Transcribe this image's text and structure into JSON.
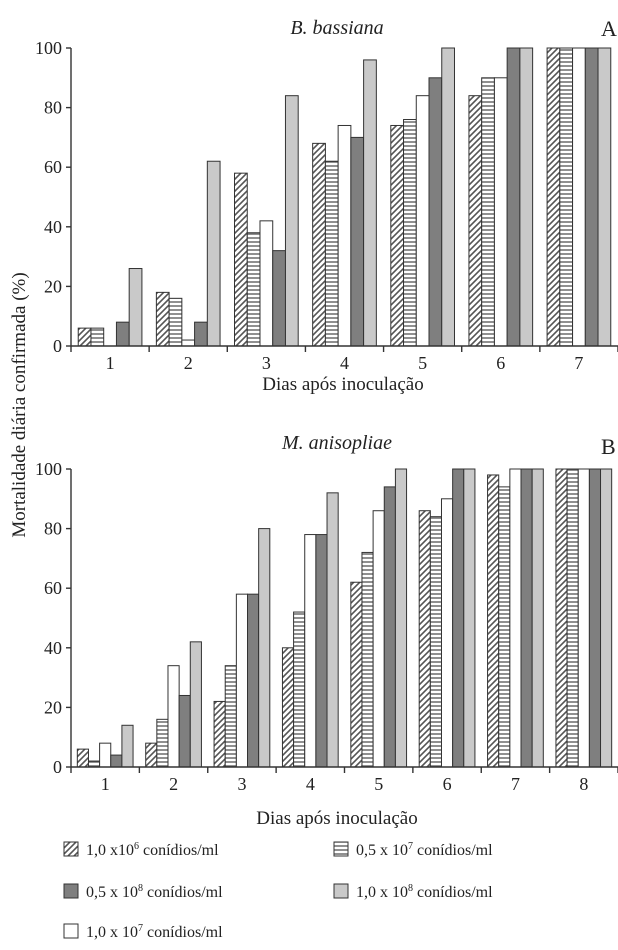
{
  "ylabel": "Mortalidade diária confirmada (%)",
  "legend": [
    {
      "key": "s1",
      "pattern": "diag",
      "parts": [
        "1,0 x10",
        "6",
        " conídios/ml"
      ]
    },
    {
      "key": "s2",
      "pattern": "horiz",
      "parts": [
        "0,5 x 10",
        "7",
        " conídios/ml"
      ]
    },
    {
      "key": "s3",
      "pattern": "dark",
      "parts": [
        "0,5 x 10",
        "8",
        " conídios/ml"
      ]
    },
    {
      "key": "s4",
      "pattern": "light",
      "parts": [
        "1,0 x 10",
        "8",
        " conídios/ml"
      ]
    },
    {
      "key": "s5",
      "pattern": "white",
      "parts": [
        "1,0 x 10",
        "7",
        " conídios/ml"
      ]
    }
  ],
  "chart_data": [
    {
      "type": "bar",
      "panel": "A",
      "title": "B. bassiana",
      "xlabel": "Dias após inoculação",
      "ylim": [
        0,
        100
      ],
      "yticks": [
        0,
        20,
        40,
        60,
        80,
        100
      ],
      "categories": [
        "1",
        "2",
        "3",
        "4",
        "5",
        "6",
        "7"
      ],
      "series": [
        {
          "name": "1,0 x10^6 conídios/ml",
          "pattern": "diag",
          "values": [
            6,
            18,
            58,
            68,
            74,
            84,
            100
          ]
        },
        {
          "name": "0,5 x 10^7 conídios/ml",
          "pattern": "horiz",
          "values": [
            6,
            16,
            38,
            62,
            76,
            90,
            100
          ]
        },
        {
          "name": "1,0 x 10^7 conídios/ml",
          "pattern": "white",
          "values": [
            0,
            2,
            42,
            74,
            84,
            90,
            100
          ]
        },
        {
          "name": "0,5 x 10^8 conídios/ml",
          "pattern": "dark",
          "values": [
            8,
            8,
            32,
            70,
            90,
            100,
            100
          ]
        },
        {
          "name": "1,0 x 10^8 conídios/ml",
          "pattern": "light",
          "values": [
            26,
            62,
            84,
            96,
            100,
            100,
            100
          ]
        }
      ]
    },
    {
      "type": "bar",
      "panel": "B",
      "title": "M. anisopliae",
      "xlabel": "Dias após inoculação",
      "ylim": [
        0,
        100
      ],
      "yticks": [
        0,
        20,
        40,
        60,
        80,
        100
      ],
      "categories": [
        "1",
        "2",
        "3",
        "4",
        "5",
        "6",
        "7",
        "8"
      ],
      "series": [
        {
          "name": "1,0 x10^6 conídios/ml",
          "pattern": "diag",
          "values": [
            6,
            8,
            22,
            40,
            62,
            86,
            98,
            100
          ]
        },
        {
          "name": "0,5 x 10^7 conídios/ml",
          "pattern": "horiz",
          "values": [
            2,
            16,
            34,
            52,
            72,
            84,
            94,
            100
          ]
        },
        {
          "name": "1,0 x 10^7 conídios/ml",
          "pattern": "white",
          "values": [
            8,
            34,
            58,
            78,
            86,
            90,
            100,
            100
          ]
        },
        {
          "name": "0,5 x 10^8 conídios/ml",
          "pattern": "dark",
          "values": [
            4,
            24,
            58,
            78,
            94,
            100,
            100,
            100
          ]
        },
        {
          "name": "1,0 x 10^8 conídios/ml",
          "pattern": "light",
          "values": [
            14,
            42,
            80,
            92,
            100,
            100,
            100,
            100
          ]
        }
      ]
    }
  ]
}
